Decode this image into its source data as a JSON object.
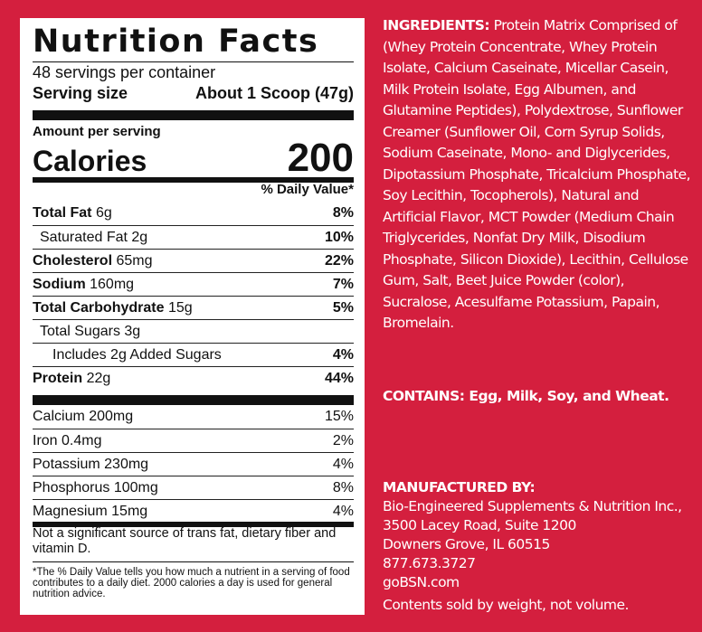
{
  "nutrition_facts": {
    "title": "Nutrition Facts",
    "servings": "48 servings per container",
    "serving_size_label": "Serving size",
    "serving_size_value": "About 1 Scoop (47g)",
    "amount_per_serving": "Amount per serving",
    "calories_label": "Calories",
    "calories_value": "200",
    "daily_value_header": "% Daily Value*",
    "nutrients": [
      {
        "name": "Total Fat",
        "amount": "6g",
        "dv": "8%"
      },
      {
        "name": "Saturated Fat 2g",
        "amount": "",
        "dv": "10%"
      },
      {
        "name": "Cholesterol",
        "amount": "65mg",
        "dv": "22%"
      },
      {
        "name": "Sodium",
        "amount": "160mg",
        "dv": "7%"
      },
      {
        "name": "Total Carbohydrate",
        "amount": "15g",
        "dv": "5%"
      },
      {
        "name": "Total Sugars 3g",
        "amount": "",
        "dv": ""
      },
      {
        "name": "Includes 2g Added Sugars",
        "amount": "",
        "dv": "4%"
      },
      {
        "name": "Protein",
        "amount": "22g",
        "dv": "44%"
      }
    ],
    "minerals": [
      {
        "name": "Calcium 200mg",
        "dv": "15%"
      },
      {
        "name": "Iron 0.4mg",
        "dv": "2%"
      },
      {
        "name": "Potassium 230mg",
        "dv": "4%"
      },
      {
        "name": "Phosphorus 100mg",
        "dv": "8%"
      },
      {
        "name": "Magnesium 15mg",
        "dv": "4%"
      }
    ],
    "not_significant": "Not a significant source of trans fat, dietary fiber and vitamin D.",
    "footnote": "*The % Daily Value tells you how much a nutrient in a serving of food contributes to a daily diet. 2000 calories a day is used for general nutrition advice."
  },
  "ingredients": {
    "label": "INGREDIENTS:",
    "text": "Protein Matrix Comprised of (Whey Protein Concentrate, Whey Protein Isolate, Calcium Caseinate, Micellar Casein, Milk Protein Isolate, Egg Albumen, and Glutamine Peptides), Polydextrose, Sunflower Creamer (Sunflower Oil, Corn Syrup Solids, Sodium Caseinate, Mono- and Diglycerides, Dipotassium Phosphate, Tricalcium Phosphate, Soy Lecithin, Tocopherols), Natural and Artificial Flavor, MCT Powder (Medium Chain Triglycerides, Nonfat Dry Milk, Disodium Phosphate, Silicon Dioxide), Lecithin, Cellulose Gum, Salt, Beet Juice Powder (color), Sucralose, Acesulfame Potassium, Papain, Bromelain."
  },
  "contains": "CONTAINS: Egg, Milk, Soy, and Wheat.",
  "manufacturer": {
    "label": "MANUFACTURED BY:",
    "lines": [
      "Bio-Engineered Supplements & Nutrition Inc.,",
      "3500 Lacey Road, Suite 1200",
      "Downers Grove, IL 60515",
      "877.673.3727",
      "goBSN.com"
    ]
  },
  "note": "Contents sold by weight, not volume."
}
